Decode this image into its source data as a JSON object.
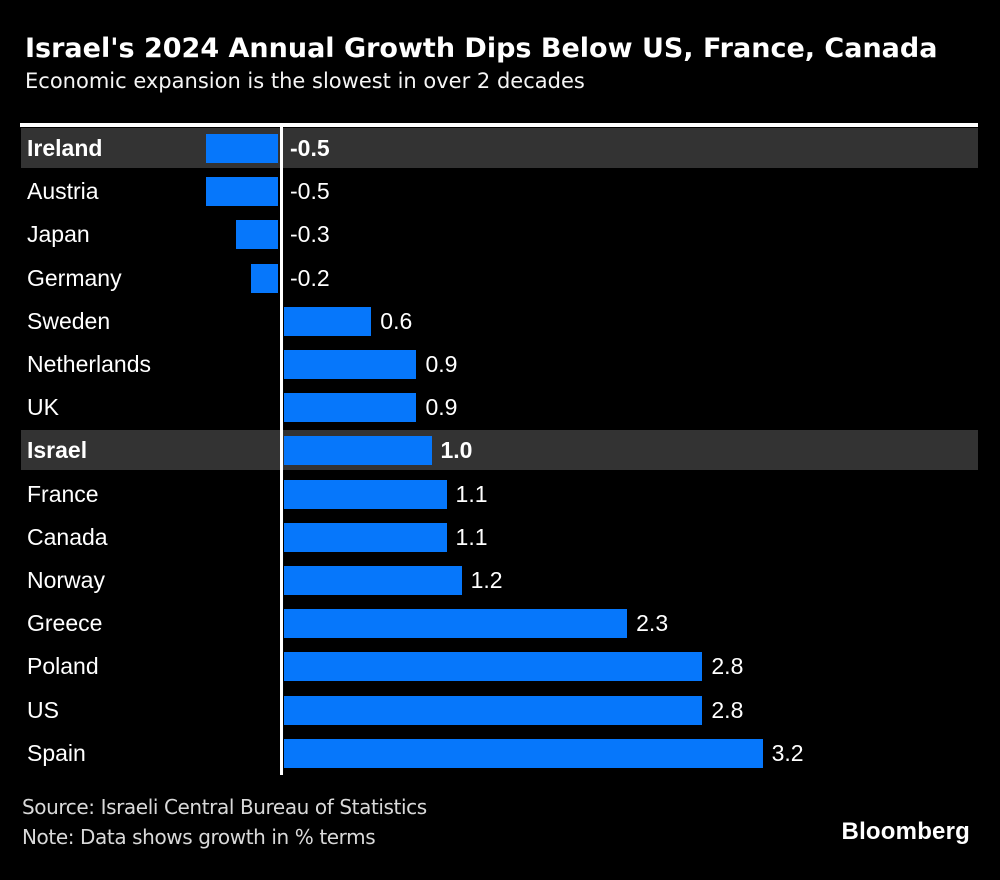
{
  "header": {
    "title": "Israel's 2024 Annual Growth Dips Below US, France, Canada",
    "subtitle": "Economic expansion is the slowest in over 2 decades"
  },
  "footer": {
    "source": "Source: Israeli Central Bureau of Statistics",
    "note": "Note: Data shows growth in % terms",
    "brand": "Bloomberg"
  },
  "colors": {
    "background": "#000000",
    "bar": "#0677fb",
    "highlight_band": "#333333",
    "text": "#ffffff",
    "footer_text": "#d9d9d9",
    "axis": "#ffffff"
  },
  "chart_data": {
    "type": "bar",
    "orientation": "horizontal",
    "title": "Israel's 2024 Annual Growth Dips Below US, France, Canada",
    "subtitle": "Economic expansion is the slowest in over 2 decades",
    "unit": "%",
    "categories": [
      "Ireland",
      "Austria",
      "Japan",
      "Germany",
      "Sweden",
      "Netherlands",
      "UK",
      "Israel",
      "France",
      "Canada",
      "Norway",
      "Greece",
      "Poland",
      "US",
      "Spain"
    ],
    "values": [
      -0.5,
      -0.5,
      -0.3,
      -0.2,
      0.6,
      0.9,
      0.9,
      1.0,
      1.1,
      1.1,
      1.2,
      2.3,
      2.8,
      2.8,
      3.2
    ],
    "value_labels": [
      "-0.5",
      "-0.5",
      "-0.3",
      "-0.2",
      "0.6",
      "0.9",
      "0.9",
      "1.0",
      "1.1",
      "1.1",
      "1.2",
      "2.3",
      "2.8",
      "2.8",
      "3.2"
    ],
    "highlighted": [
      "Ireland",
      "Israel"
    ],
    "zero_line": true,
    "grid": false,
    "legend": false,
    "value_axis_ticks_visible": false
  }
}
